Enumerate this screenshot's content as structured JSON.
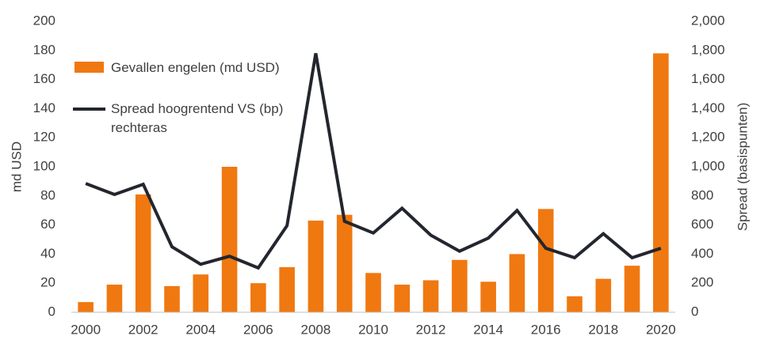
{
  "chart_data": {
    "type": "bar-line",
    "y_label": "md USD",
    "y2_label": "Spread (basispunten)",
    "categories": [
      2000,
      null,
      2002,
      null,
      2004,
      null,
      2006,
      null,
      2008,
      null,
      2010,
      null,
      2012,
      null,
      2014,
      null,
      2016,
      null,
      2018,
      null,
      2020
    ],
    "series": [
      {
        "name": "Gevallen engelen (md USD)",
        "type": "bar",
        "color": "#f07810",
        "values": [
          7,
          19,
          81,
          18,
          26,
          100,
          20,
          31,
          63,
          67,
          27,
          19,
          22,
          36,
          21,
          40,
          71,
          11,
          23,
          32,
          178
        ]
      },
      {
        "name": "Spread hoogrentend VS (bp) rechteras",
        "type": "line",
        "axis": "y2",
        "color": "#23262e",
        "values": [
          885,
          810,
          880,
          450,
          330,
          385,
          305,
          595,
          1780,
          625,
          545,
          715,
          530,
          420,
          510,
          700,
          440,
          375,
          540,
          375,
          440
        ]
      }
    ],
    "ylim": [
      0,
      200
    ],
    "yticks": [
      0,
      20,
      40,
      60,
      80,
      100,
      120,
      140,
      160,
      180,
      200
    ],
    "y2lim": [
      0,
      2000
    ],
    "y2ticks": [
      0,
      200,
      400,
      600,
      800,
      {
        "value": 1000,
        "label": "1,000"
      },
      {
        "value": 1200,
        "label": "1,200"
      },
      {
        "value": 1400,
        "label": "1,400"
      },
      {
        "value": 1600,
        "label": "1,600"
      },
      {
        "value": 1800,
        "label": "1,800"
      },
      {
        "value": 2000,
        "label": "2,000"
      }
    ],
    "grid": false
  }
}
